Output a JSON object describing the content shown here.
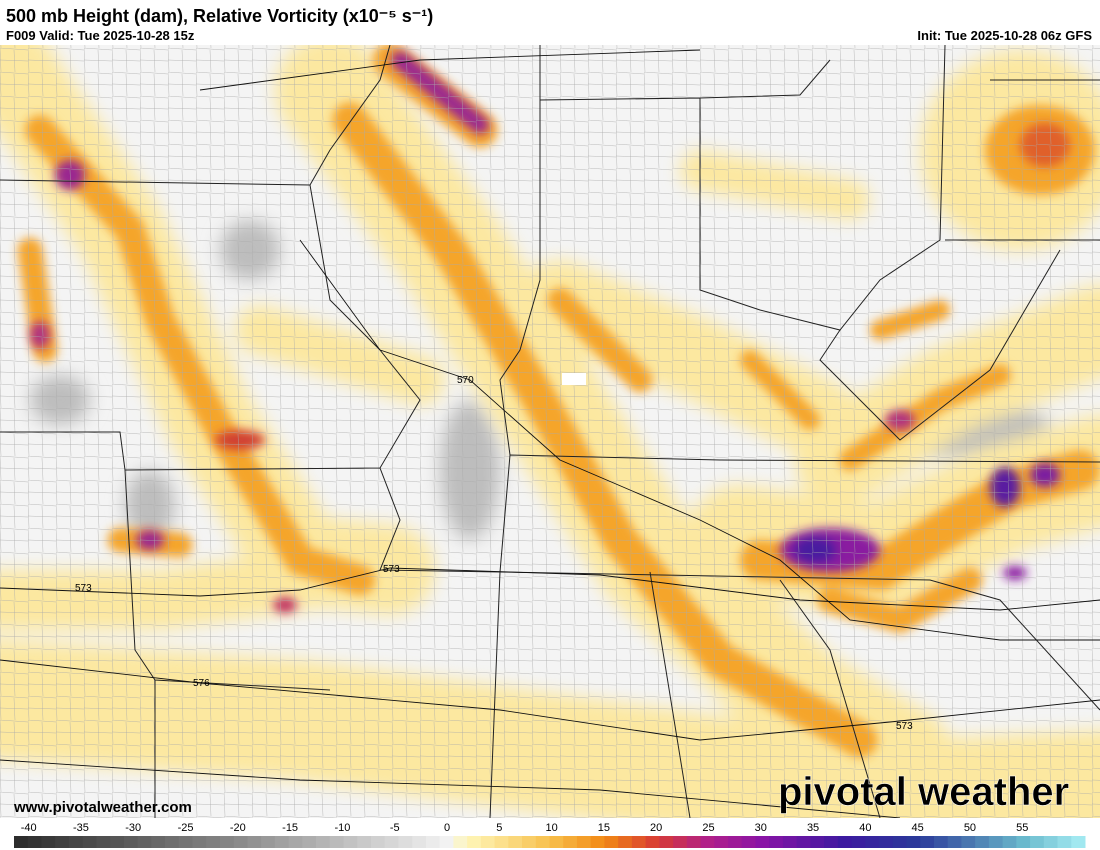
{
  "header": {
    "title": "500 mb Height (dam), Relative Vorticity (x10⁻⁵ s⁻¹)",
    "valid": "F009 Valid: Tue 2025-10-28 15z",
    "init": "Init: Tue 2025-10-28 06z GFS"
  },
  "contour_labels": [
    570,
    573,
    573,
    576,
    573
  ],
  "watermark": {
    "url": "www.pivotalweather.com",
    "brand": "pivotal weather"
  },
  "colorbar": {
    "range": [
      -41.4,
      61
    ],
    "ticks": [
      -40,
      -35,
      -30,
      -25,
      -20,
      -15,
      -10,
      -5,
      0,
      5,
      10,
      15,
      20,
      25,
      30,
      35,
      40,
      45,
      50,
      55
    ],
    "stops": [
      [
        -41.4,
        "#2a2a2a"
      ],
      [
        -20,
        "#8a8a8a"
      ],
      [
        0,
        "#f2f2f2"
      ],
      [
        2,
        "#fff6b8"
      ],
      [
        10,
        "#f7bf4a"
      ],
      [
        15,
        "#f28a14"
      ],
      [
        20,
        "#d83c34"
      ],
      [
        25,
        "#b0208a"
      ],
      [
        30,
        "#8a14a6"
      ],
      [
        38,
        "#3c1aa0"
      ],
      [
        45,
        "#2a3a9a"
      ],
      [
        50,
        "#4a78b0"
      ],
      [
        55,
        "#68b8cc"
      ],
      [
        61,
        "#a8eef4"
      ]
    ]
  }
}
